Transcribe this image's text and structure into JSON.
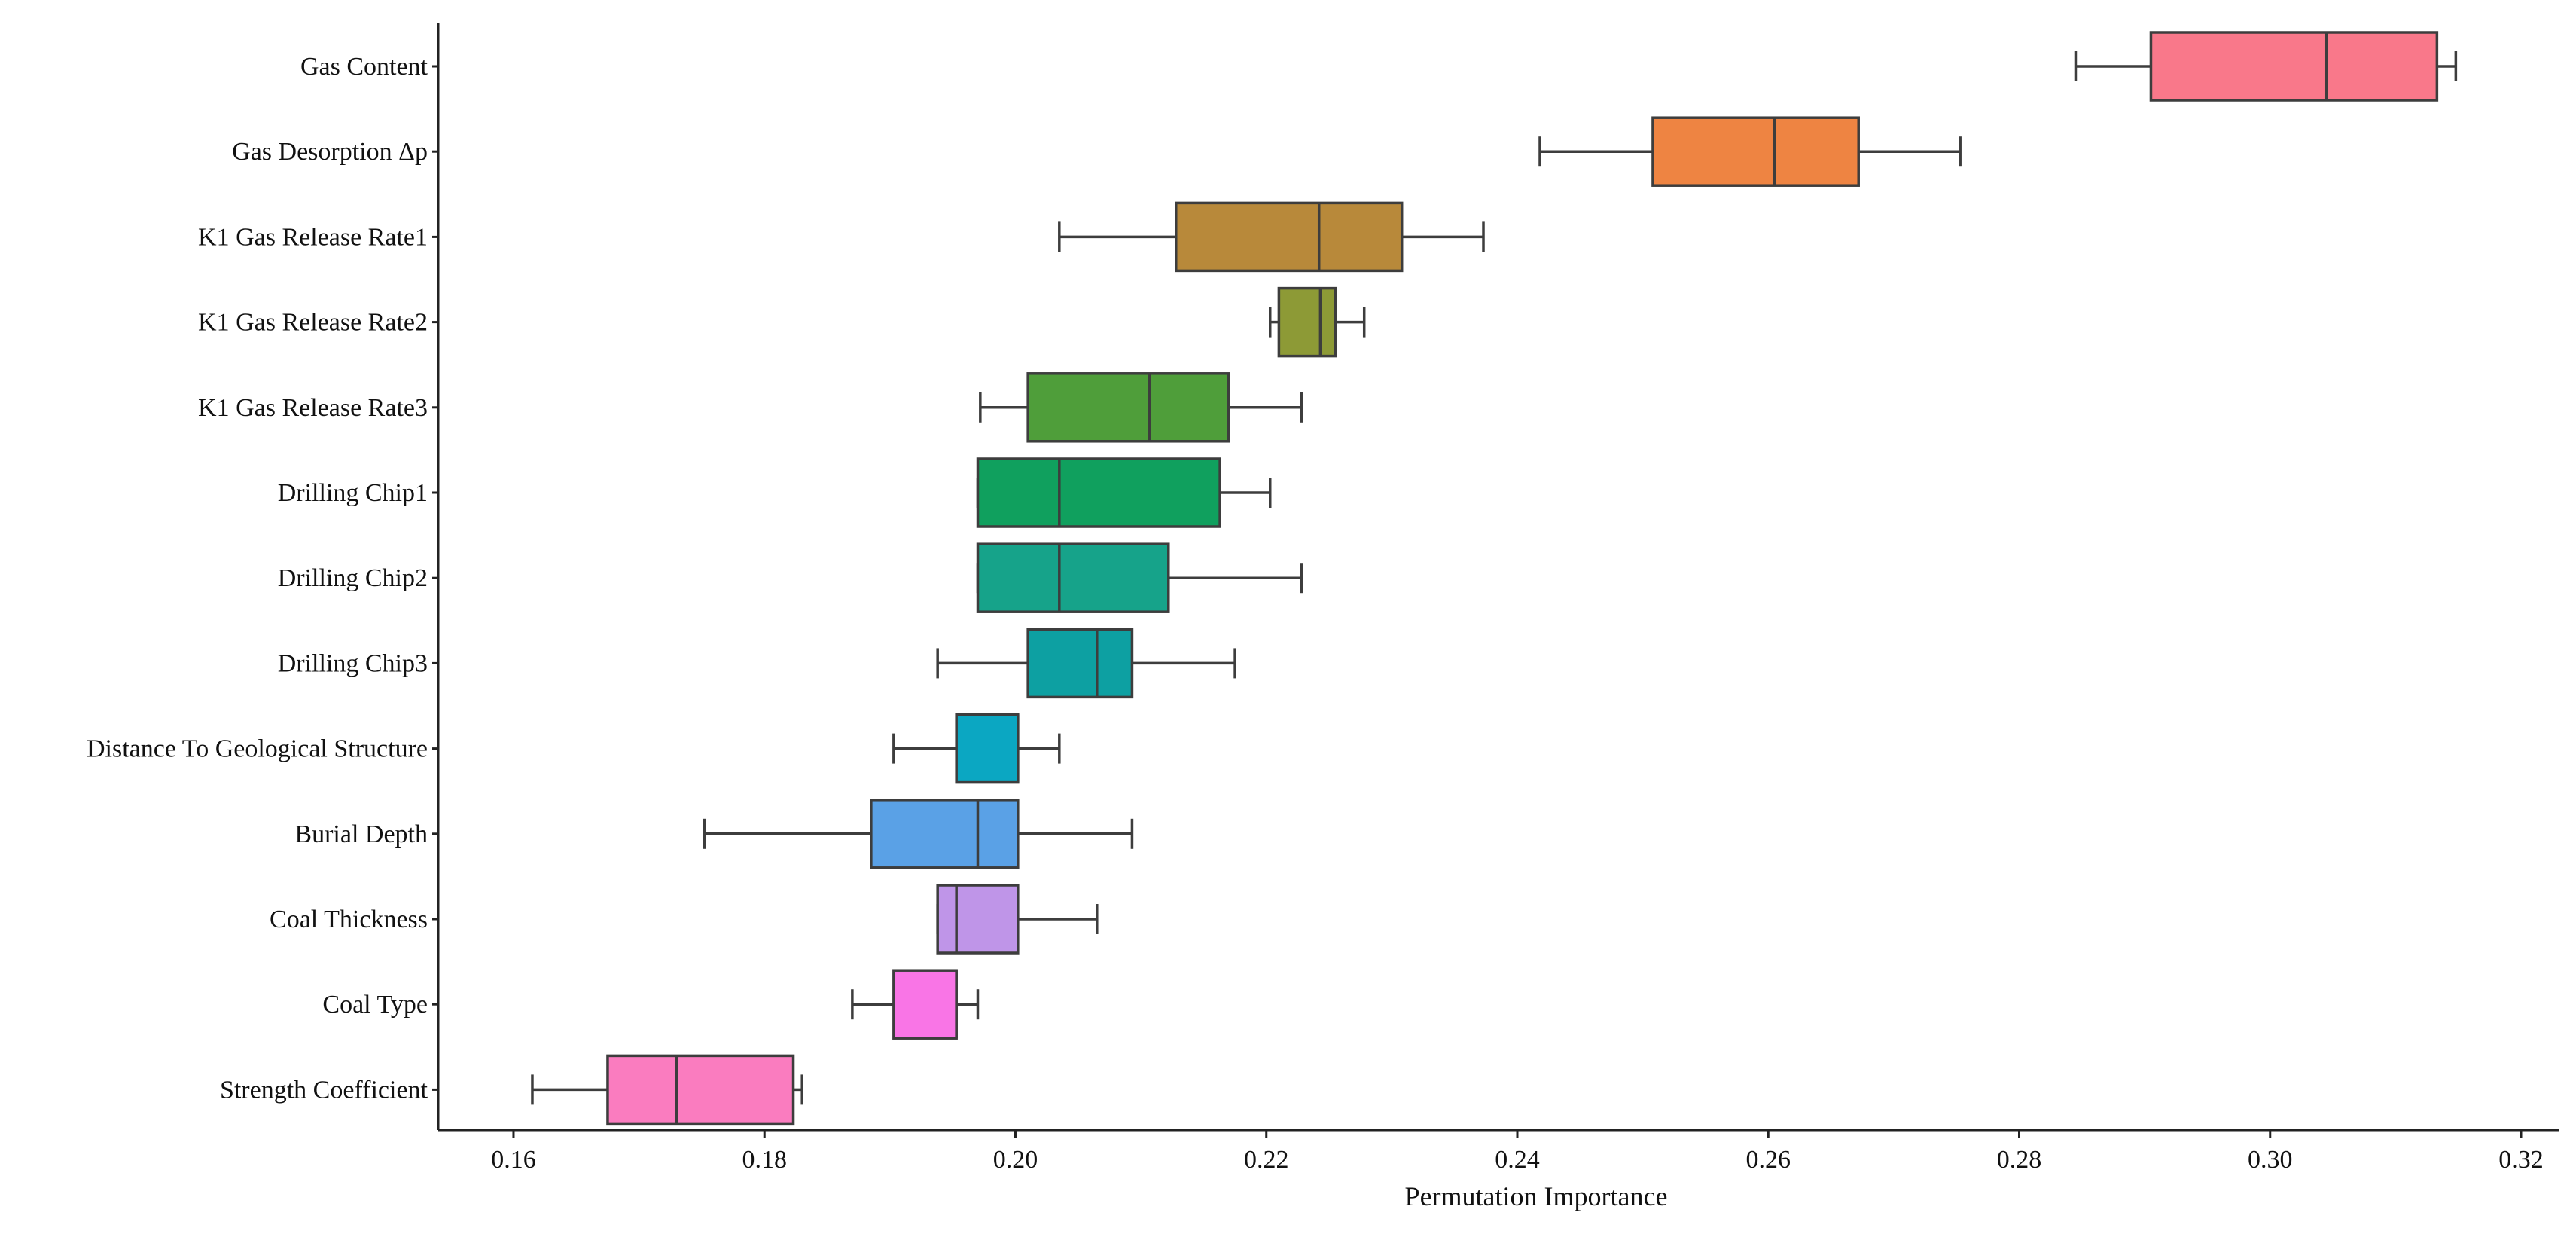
{
  "chart_data": {
    "type": "boxplot",
    "orientation": "horizontal",
    "title": "",
    "xlabel": "Permutation Importance",
    "ylabel": "",
    "xlim": [
      0.154,
      0.323
    ],
    "xticks": [
      0.16,
      0.18,
      0.2,
      0.22,
      0.24,
      0.26,
      0.28,
      0.3,
      0.32
    ],
    "xtick_labels": [
      "0.16",
      "0.18",
      "0.20",
      "0.22",
      "0.24",
      "0.26",
      "0.28",
      "0.30",
      "0.32"
    ],
    "grid": false,
    "legend": "none",
    "series": [
      {
        "name": "Gas Content",
        "whisker_low": 0.2845,
        "q1": 0.2905,
        "median": 0.3045,
        "q3": 0.3133,
        "whisker_high": 0.3148,
        "color": "#f9788a"
      },
      {
        "name": "Gas Desorption Δp",
        "whisker_low": 0.2418,
        "q1": 0.2508,
        "median": 0.2605,
        "q3": 0.2672,
        "whisker_high": 0.2753,
        "color": "#ee8442"
      },
      {
        "name": "K1 Gas Release Rate1",
        "whisker_low": 0.2035,
        "q1": 0.2128,
        "median": 0.2242,
        "q3": 0.2308,
        "whisker_high": 0.2373,
        "color": "#b8893a"
      },
      {
        "name": "K1 Gas Release Rate2",
        "whisker_low": 0.2203,
        "q1": 0.221,
        "median": 0.2243,
        "q3": 0.2255,
        "whisker_high": 0.2278,
        "color": "#8d9a36"
      },
      {
        "name": "K1 Gas Release Rate3",
        "whisker_low": 0.1972,
        "q1": 0.201,
        "median": 0.2107,
        "q3": 0.217,
        "whisker_high": 0.2228,
        "color": "#4f9e3a"
      },
      {
        "name": "Drilling Chip1",
        "whisker_low": 0.197,
        "q1": 0.197,
        "median": 0.2035,
        "q3": 0.2163,
        "whisker_high": 0.2203,
        "color": "#10a05e"
      },
      {
        "name": "Drilling Chip2",
        "whisker_low": 0.197,
        "q1": 0.197,
        "median": 0.2035,
        "q3": 0.2122,
        "whisker_high": 0.2228,
        "color": "#16a38a"
      },
      {
        "name": "Drilling Chip3",
        "whisker_low": 0.1938,
        "q1": 0.201,
        "median": 0.2065,
        "q3": 0.2093,
        "whisker_high": 0.2175,
        "color": "#0da0a2"
      },
      {
        "name": "Distance To Geological Structure",
        "whisker_low": 0.1903,
        "q1": 0.1953,
        "median": 0.2002,
        "q3": 0.2002,
        "whisker_high": 0.2035,
        "color": "#0ba7c2"
      },
      {
        "name": "Burial Depth",
        "whisker_low": 0.1752,
        "q1": 0.1885,
        "median": 0.197,
        "q3": 0.2002,
        "whisker_high": 0.2093,
        "color": "#5aa1e6"
      },
      {
        "name": "Coal Thickness",
        "whisker_low": 0.1938,
        "q1": 0.1938,
        "median": 0.1953,
        "q3": 0.2002,
        "whisker_high": 0.2065,
        "color": "#bf95e8"
      },
      {
        "name": "Coal Type",
        "whisker_low": 0.187,
        "q1": 0.1903,
        "median": 0.1953,
        "q3": 0.1953,
        "whisker_high": 0.197,
        "color": "#f975e6"
      },
      {
        "name": "Strength Coefficient",
        "whisker_low": 0.1615,
        "q1": 0.1675,
        "median": 0.173,
        "q3": 0.1823,
        "whisker_high": 0.183,
        "color": "#fa7cbf"
      }
    ]
  }
}
